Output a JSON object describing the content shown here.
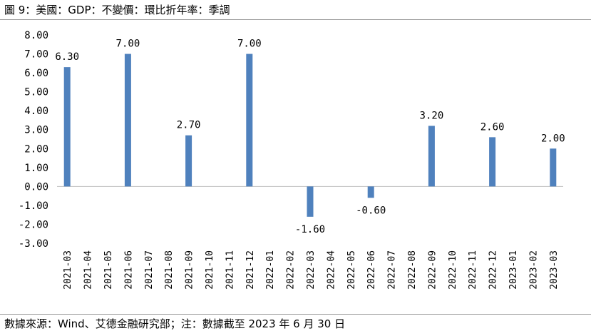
{
  "header": {
    "title": "圖 9：美國：GDP：不變價：環比折年率：季調"
  },
  "footer": {
    "source": "數據來源：Wind、艾德金融研究部；注：數據截至 2023 年 6 月 30 日"
  },
  "chart_data": {
    "type": "bar",
    "title": "",
    "xlabel": "",
    "ylabel": "",
    "ylim": [
      -3,
      8
    ],
    "yticks": [
      "8.00",
      "7.00",
      "6.00",
      "5.00",
      "4.00",
      "3.00",
      "2.00",
      "1.00",
      "0.00",
      "-1.00",
      "-2.00",
      "-3.00"
    ],
    "categories": [
      "2021-03",
      "2021-04",
      "2021-05",
      "2021-06",
      "2021-07",
      "2021-08",
      "2021-09",
      "2021-10",
      "2021-11",
      "2021-12",
      "2022-01",
      "2022-02",
      "2022-03",
      "2022-04",
      "2022-05",
      "2022-06",
      "2022-07",
      "2022-08",
      "2022-09",
      "2022-10",
      "2022-11",
      "2022-12",
      "2023-01",
      "2023-02",
      "2023-03"
    ],
    "values": [
      6.3,
      null,
      null,
      7.0,
      null,
      null,
      2.7,
      null,
      null,
      7.0,
      null,
      null,
      -1.6,
      null,
      null,
      -0.6,
      null,
      null,
      3.2,
      null,
      null,
      2.6,
      null,
      null,
      2.0
    ],
    "data_labels": [
      "6.30",
      "",
      "",
      "7.00",
      "",
      "",
      "2.70",
      "",
      "",
      "7.00",
      "",
      "",
      "-1.60",
      "",
      "",
      "-0.60",
      "",
      "",
      "3.20",
      "",
      "",
      "2.60",
      "",
      "",
      "2.00"
    ],
    "bar_color": "#4F81BD",
    "grid": false,
    "legend": "none"
  }
}
